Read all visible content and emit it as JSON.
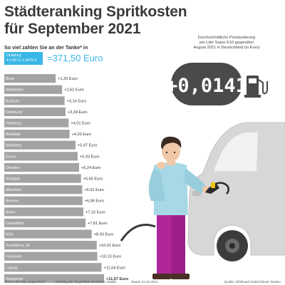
{
  "header": {
    "title_line1": "Städteranking Spritkosten",
    "title_line2": "für September 2021"
  },
  "subhead": "So viel zahlen Sie an der Tanke* in",
  "reference": {
    "city": "Duisburg",
    "formula": "4 x 60 l x 1,5479 €",
    "total": "=371,50 Euro"
  },
  "price_change": {
    "note_line1": "Durchschnittliche Preisänderung",
    "note_line2": "pro Liter Super E10 gegenüber",
    "note_line3": "August 2021 in Deutschland (in Euro)",
    "value": "+0,0141",
    "icon": "fuel-pump-icon"
  },
  "colors": {
    "accent": "#39b7e6",
    "bar": "#a3a3a3",
    "display_bg": "#4a4a4a"
  },
  "chart_data": {
    "type": "bar",
    "orientation": "horizontal",
    "categories": [
      "Bonn",
      "Mannheim",
      "Bochum",
      "Dortmund",
      "Hamburg",
      "Bielefeld",
      "Nürnberg",
      "Essen",
      "Dresden",
      "Stuttgart",
      "München",
      "Bremen",
      "Berlin",
      "Düsseldorf",
      "Köln",
      "Frankfurt a. M.",
      "Hannover",
      "Leipzig",
      "Wuppertal"
    ],
    "values": [
      1.25,
      2.62,
      3.14,
      3.34,
      4.01,
      4.2,
      5.47,
      5.93,
      6.24,
      6.65,
      6.91,
      6.96,
      7.15,
      7.61,
      8.93,
      10.01,
      10.13,
      11.04,
      11.57
    ],
    "labels": [
      "+1,25 Euro",
      "+2,62 Euro",
      "+3,14 Euro",
      "+3,34 Euro",
      "+4,01 Euro",
      "+4,20 Euro",
      "+5,47 Euro",
      "+5,93 Euro",
      "+6,24 Euro",
      "+6,65 Euro",
      "+6,91 Euro",
      "+6,96 Euro",
      "+7,15 Euro",
      "+7,61 Euro",
      "+8,93 Euro",
      "+10,01 Euro",
      "+10,13 Euro",
      "+11,04 Euro",
      "+11,57 Euro"
    ],
    "highlight_last": true
  },
  "footer": {
    "note": "*für 4 x 60 Liter „Super E10“",
    "ranking": "Ranking der 20 größten deutschen Städte",
    "date": "Stand: 01.10.2021",
    "source": "Quelle: infoRoad GmbH/Clever Tanken"
  }
}
